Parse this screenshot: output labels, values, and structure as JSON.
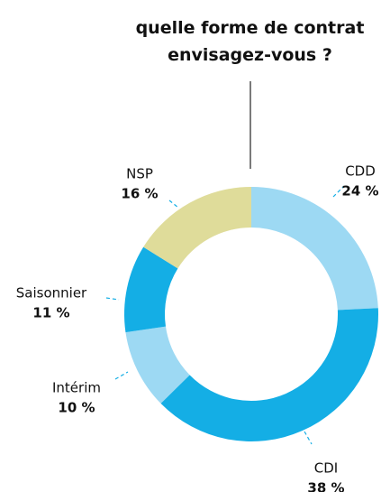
{
  "chart_data": {
    "type": "donut",
    "title": "quelle forme de contrat envisagez-vous ?",
    "categories": [
      "CDD",
      "CDI",
      "Intérim",
      "Saisonnier",
      "NSP"
    ],
    "values": [
      24,
      38,
      10,
      11,
      16
    ],
    "value_labels": [
      "24 %",
      "38 %",
      "10 %",
      "11 %",
      "16 %"
    ],
    "colors": [
      "#9dd9f3",
      "#14aee5",
      "#9dd9f3",
      "#14aee5",
      "#dfdc9a"
    ]
  }
}
